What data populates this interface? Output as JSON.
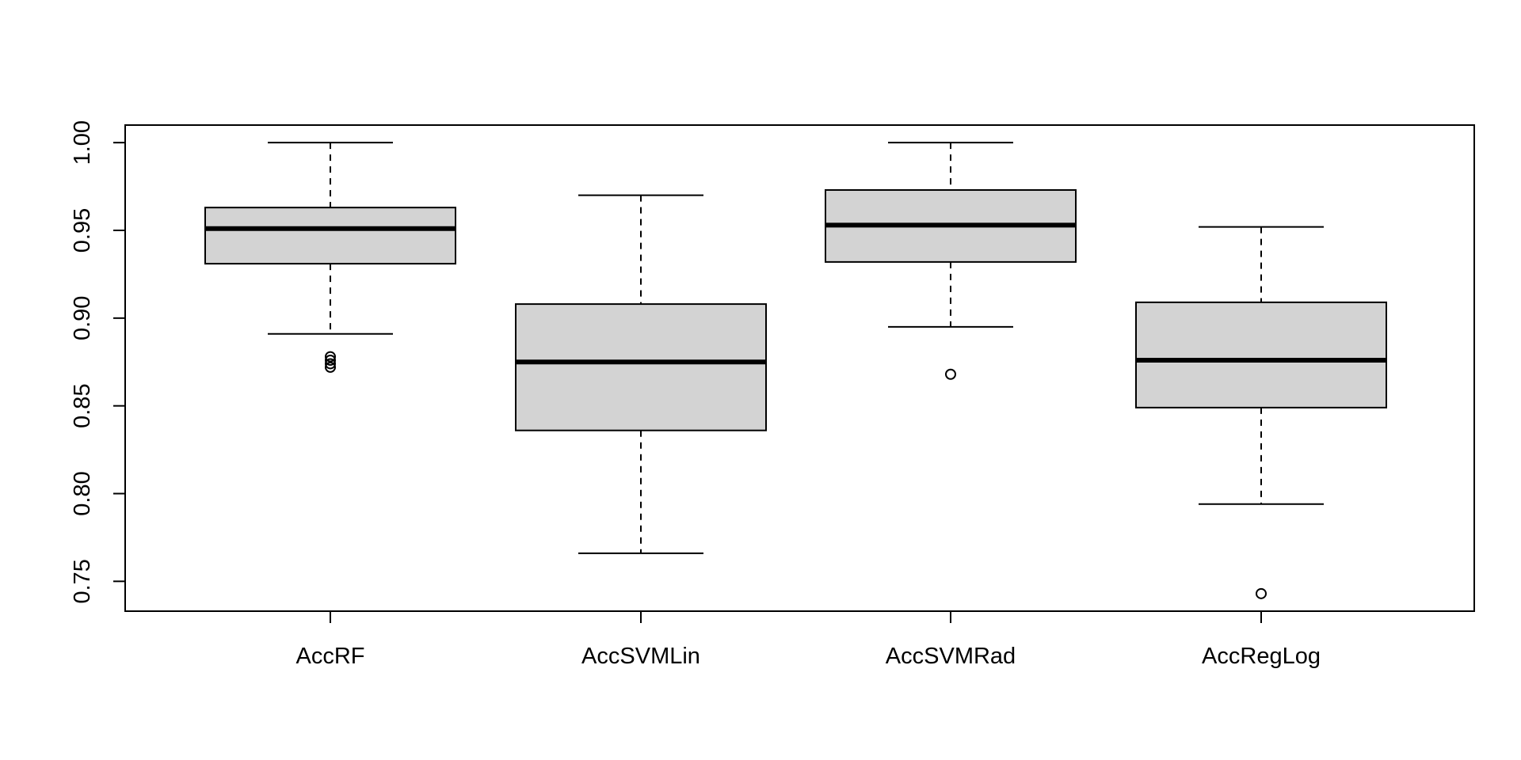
{
  "chart_data": {
    "type": "boxplot",
    "title": "",
    "xlabel": "",
    "ylabel": "",
    "ylim": [
      0.733,
      1.01
    ],
    "y_ticks": [
      0.75,
      0.8,
      0.85,
      0.9,
      0.95,
      1.0
    ],
    "y_tick_labels": [
      "0.75",
      "0.80",
      "0.85",
      "0.90",
      "0.95",
      "1.00"
    ],
    "categories": [
      "AccRF",
      "AccSVMLin",
      "AccSVMRad",
      "AccRegLog"
    ],
    "boxes": [
      {
        "whisker_low": 0.891,
        "q1": 0.931,
        "median": 0.951,
        "q3": 0.963,
        "whisker_high": 1.0,
        "outliers": [
          0.872,
          0.874,
          0.876,
          0.878
        ]
      },
      {
        "whisker_low": 0.766,
        "q1": 0.836,
        "median": 0.875,
        "q3": 0.908,
        "whisker_high": 0.97,
        "outliers": []
      },
      {
        "whisker_low": 0.895,
        "q1": 0.932,
        "median": 0.953,
        "q3": 0.973,
        "whisker_high": 1.0,
        "outliers": [
          0.868
        ]
      },
      {
        "whisker_low": 0.794,
        "q1": 0.849,
        "median": 0.876,
        "q3": 0.909,
        "whisker_high": 0.952,
        "outliers": [
          0.743
        ]
      }
    ],
    "box_fill": "#d3d3d3",
    "line_color": "#000000",
    "grid": false,
    "legend": "none"
  }
}
